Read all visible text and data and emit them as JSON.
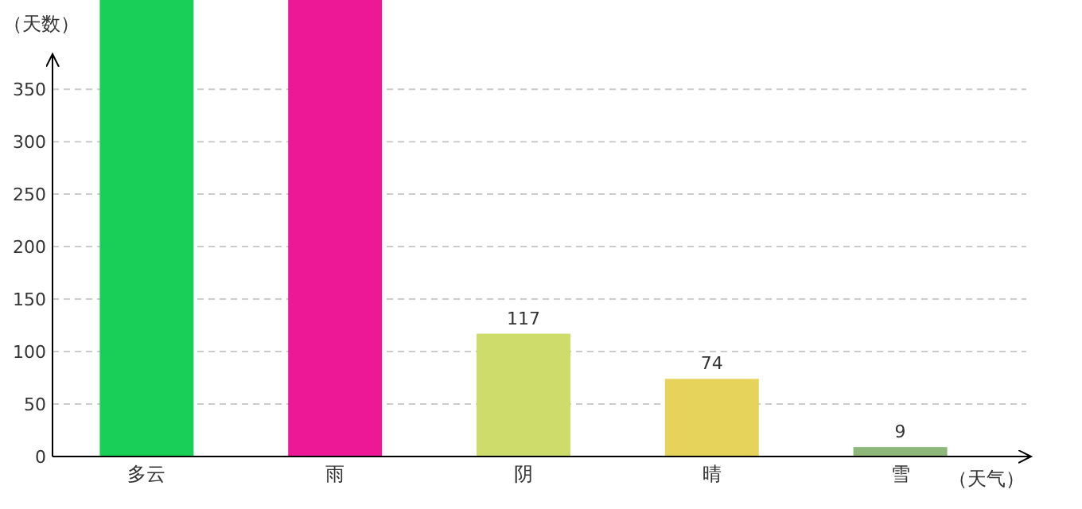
{
  "chart_data": {
    "type": "bar",
    "ylabel": "（天数）",
    "xlabel": "（天气）",
    "categories": [
      "多云",
      "雨",
      "阴",
      "晴",
      "雪"
    ],
    "values": [
      435,
      435,
      117,
      74,
      9
    ],
    "value_labels": [
      null,
      null,
      "117",
      "74",
      "9"
    ],
    "colors": [
      "#19cf58",
      "#ec1896",
      "#cddc6a",
      "#e6d35b",
      "#8db87a"
    ],
    "ylim": [
      0,
      435
    ],
    "yticks": [
      0,
      50,
      100,
      150,
      200,
      250,
      300,
      350
    ],
    "grid": "y"
  }
}
